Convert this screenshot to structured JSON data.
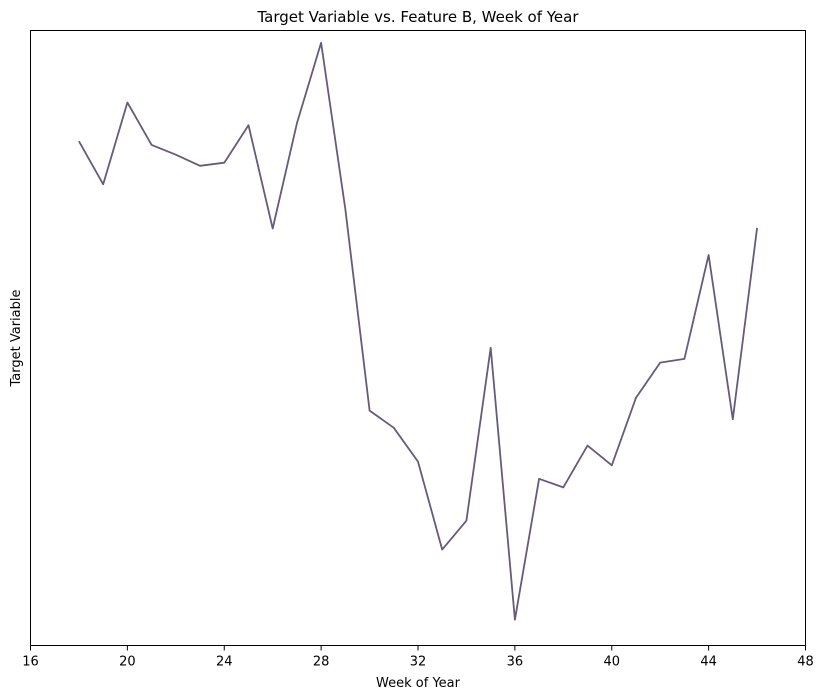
{
  "chart_data": {
    "type": "line",
    "title": "Target Variable vs. Feature B, Week of Year",
    "xlabel": "Week of Year",
    "ylabel": "Target Variable",
    "xlim": [
      16,
      48
    ],
    "ylim": [
      0,
      100
    ],
    "xticks": [
      16,
      20,
      24,
      28,
      32,
      36,
      40,
      44,
      48
    ],
    "yticks_visible": false,
    "grid": false,
    "legend": "none",
    "line_color": "#675a7c",
    "series": [
      {
        "x": [
          18,
          19,
          20,
          21,
          22,
          23,
          24,
          25,
          26,
          27,
          28,
          29,
          30,
          31,
          32,
          33,
          34,
          35,
          36,
          37,
          38,
          39,
          40,
          41,
          42,
          43,
          44,
          45,
          46
        ],
        "values": [
          82.0,
          75.0,
          88.3,
          81.4,
          79.8,
          78.0,
          78.5,
          84.6,
          67.8,
          84.9,
          98.0,
          71.0,
          38.2,
          35.4,
          29.9,
          15.6,
          20.3,
          48.4,
          4.2,
          27.1,
          25.7,
          32.5,
          29.3,
          40.3,
          46.0,
          46.6,
          63.5,
          36.8,
          67.9
        ]
      }
    ]
  }
}
